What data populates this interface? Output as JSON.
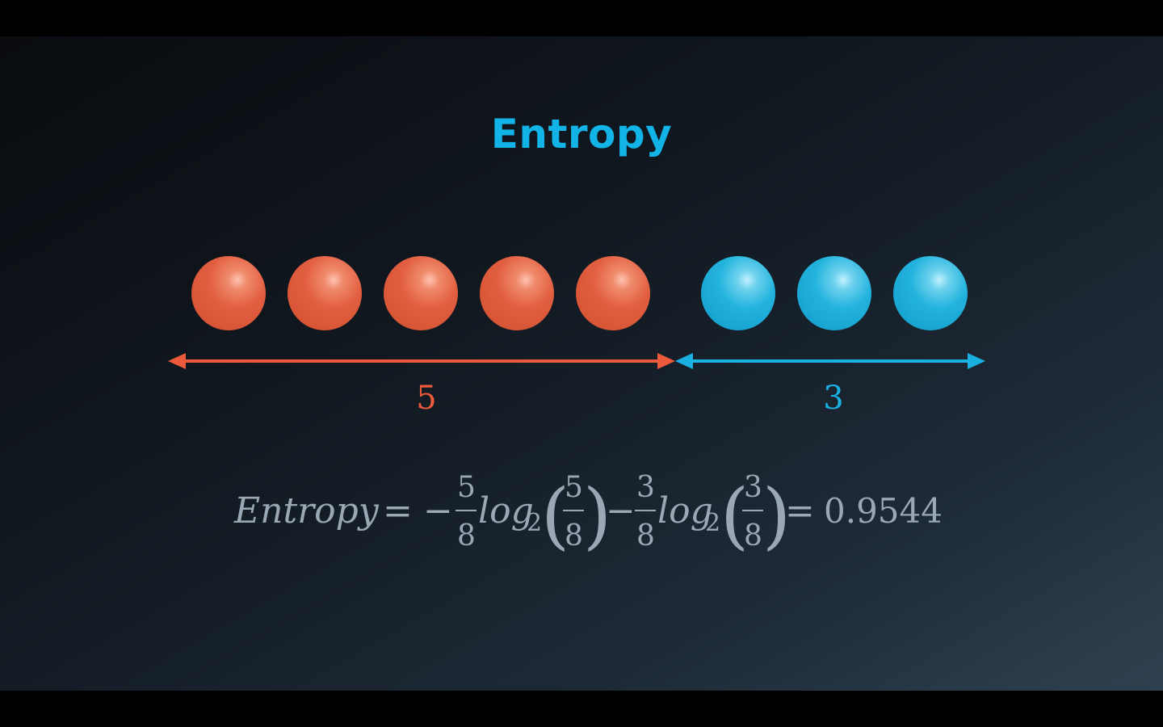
{
  "slide": {
    "title": "Entropy",
    "colors": {
      "title": "#12b3e6",
      "red": "#e05a3c",
      "blue": "#1ab1e2",
      "formula": "#9aa7b5"
    }
  },
  "groups": {
    "red": {
      "count": 5,
      "label": "5"
    },
    "blue": {
      "count": 3,
      "label": "3"
    }
  },
  "formula": {
    "lhs": "Entropy",
    "eq1": "=",
    "minus1": "−",
    "frac1_num": "5",
    "frac1_den": "8",
    "log1": "log",
    "log1_sub": "2",
    "inner1_num": "5",
    "inner1_den": "8",
    "minus2": "−",
    "frac2_num": "3",
    "frac2_den": "8",
    "log2": "log",
    "log2_sub": "2",
    "inner2_num": "3",
    "inner2_den": "8",
    "eq2": "=",
    "result": "0.9544"
  }
}
